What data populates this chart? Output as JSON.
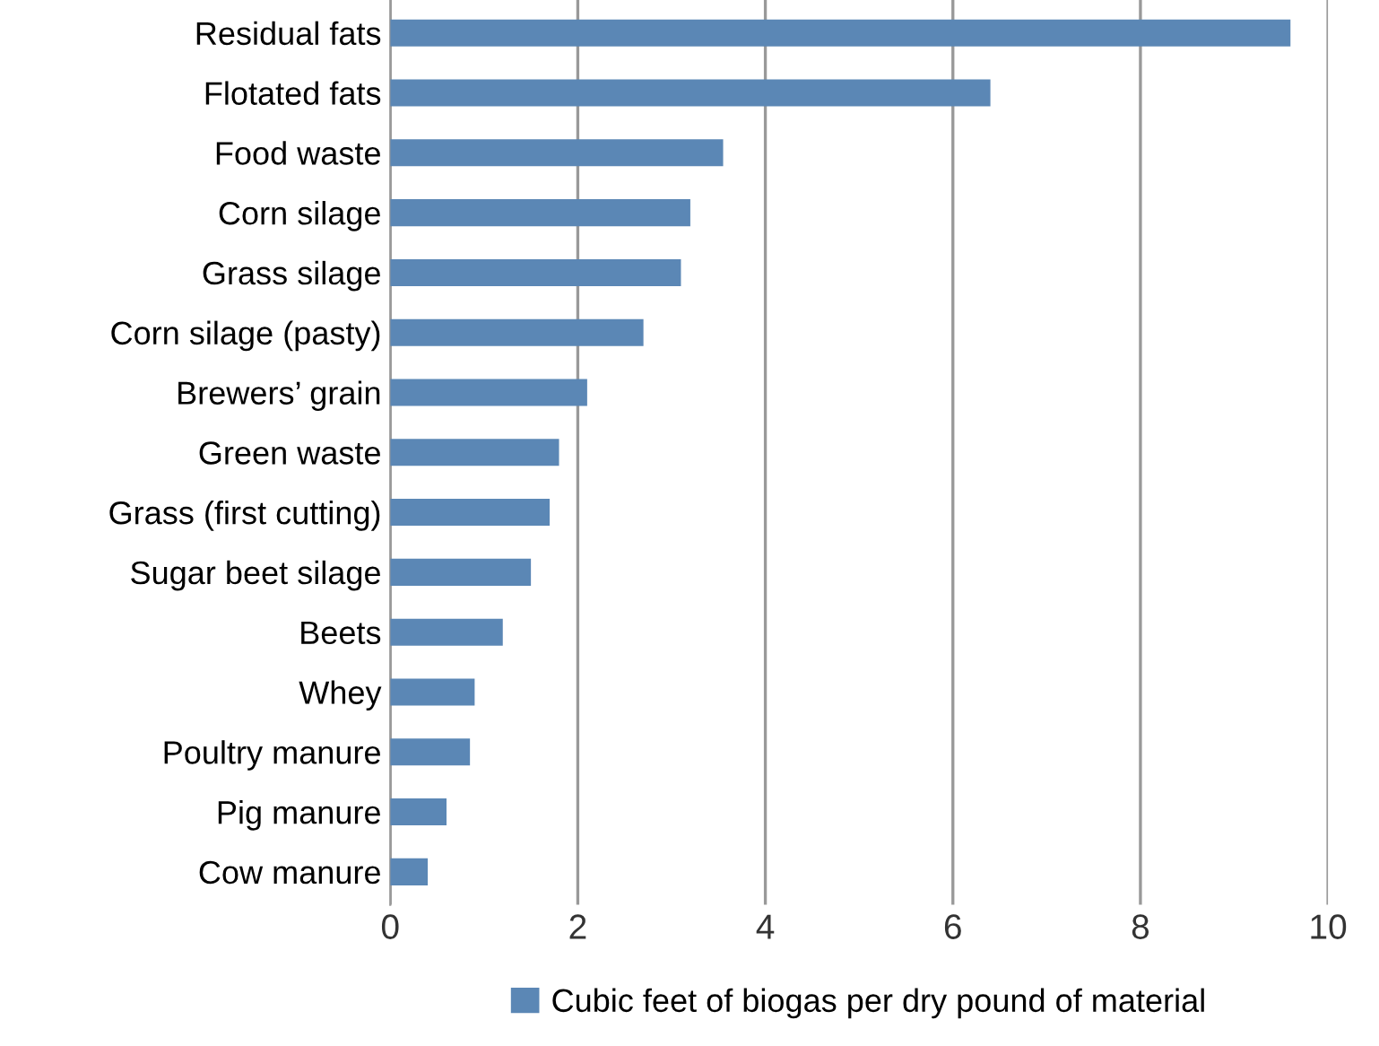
{
  "chart_data": {
    "type": "bar",
    "orientation": "horizontal",
    "categories": [
      "Residual fats",
      "Flotated fats",
      "Food waste",
      "Corn silage",
      "Grass silage",
      "Corn silage (pasty)",
      "Brewers’ grain",
      "Green waste",
      "Grass (first cutting)",
      "Sugar beet silage",
      "Beets",
      "Whey",
      "Poultry manure",
      "Pig manure",
      "Cow manure"
    ],
    "series": [
      {
        "name": "Cubic feet of biogas per dry pound of material",
        "color": "#5b87b5",
        "values": [
          9.6,
          6.4,
          3.55,
          3.2,
          3.1,
          2.7,
          2.1,
          1.8,
          1.7,
          1.5,
          1.2,
          0.9,
          0.85,
          0.6,
          0.4
        ]
      }
    ],
    "xlim": [
      0,
      10
    ],
    "xticks": [
      0,
      2,
      4,
      6,
      8,
      10
    ],
    "grid": "x",
    "legend": "bottom"
  }
}
